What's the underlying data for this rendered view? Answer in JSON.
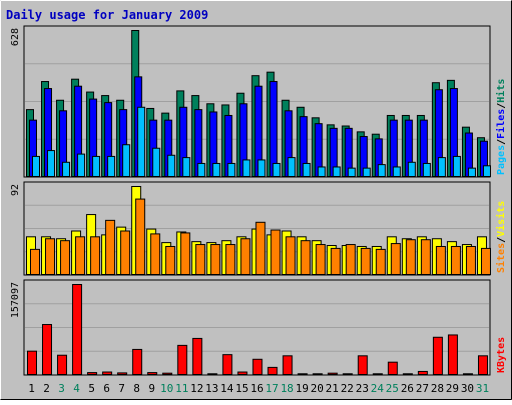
{
  "colors": {
    "background": "#c0c0c0",
    "plot_background": "#c0c0c0",
    "gridline": "#a0a0a0",
    "title": "#0000c0",
    "hits": "#00805c",
    "files": "#0000ff",
    "pages": "#00c0ff",
    "visits": "#ffff00",
    "sites": "#ff8000",
    "kbytes": "#ff0000",
    "weekend_label": "#00805c",
    "weekday_label": "#000000"
  },
  "chart_data": {
    "type": "bar",
    "title": "Daily usage for January 2009",
    "categories": [
      "1",
      "2",
      "3",
      "4",
      "5",
      "6",
      "7",
      "8",
      "9",
      "10",
      "11",
      "12",
      "13",
      "14",
      "15",
      "16",
      "17",
      "18",
      "19",
      "20",
      "21",
      "22",
      "23",
      "24",
      "25",
      "26",
      "27",
      "28",
      "29",
      "30",
      "31"
    ],
    "weekend_days": [
      "3",
      "4",
      "10",
      "11",
      "17",
      "18",
      "24",
      "25",
      "31"
    ],
    "panels": [
      {
        "name": "hits-files-pages",
        "max_label": "628",
        "ylim": [
          0,
          628
        ],
        "legend": [
          {
            "label": "Pages",
            "color_key": "pages"
          },
          {
            "label": "/",
            "color_key": "separator"
          },
          {
            "label": "Files",
            "color_key": "files"
          },
          {
            "label": "/",
            "color_key": "separator"
          },
          {
            "label": "Hits",
            "color_key": "hits"
          }
        ],
        "series": [
          {
            "name": "Hits",
            "color_key": "hits",
            "values": [
              290,
              410,
              330,
              420,
              365,
              350,
              330,
              628,
              295,
              275,
              370,
              350,
              315,
              310,
              360,
              435,
              450,
              330,
              300,
              255,
              225,
              220,
              195,
              185,
              265,
              265,
              265,
              405,
              415,
              215,
              170
            ]
          },
          {
            "name": "Files",
            "color_key": "files",
            "values": [
              245,
              380,
              285,
              390,
              335,
              320,
              290,
              430,
              245,
              245,
              300,
              290,
              280,
              265,
              315,
              390,
              410,
              285,
              260,
              230,
              210,
              210,
              175,
              165,
              245,
              245,
              245,
              375,
              380,
              190,
              155
            ]
          },
          {
            "name": "Pages",
            "color_key": "pages",
            "values": [
              90,
              115,
              65,
              100,
              90,
              90,
              140,
              300,
              125,
              95,
              85,
              60,
              60,
              60,
              75,
              75,
              60,
              85,
              60,
              45,
              45,
              40,
              40,
              55,
              45,
              65,
              60,
              85,
              90,
              40,
              50
            ]
          }
        ]
      },
      {
        "name": "visits-sites",
        "max_label": "92",
        "ylim": [
          0,
          92
        ],
        "legend": [
          {
            "label": "Sites",
            "color_key": "sites"
          },
          {
            "label": "/",
            "color_key": "separator"
          },
          {
            "label": "Visits",
            "color_key": "visits"
          }
        ],
        "series": [
          {
            "name": "Visits",
            "color_key": "visits",
            "values": [
              40,
              40,
              38,
              46,
              63,
              42,
              50,
              92,
              48,
              34,
              45,
              35,
              34,
              36,
              40,
              48,
              42,
              46,
              40,
              36,
              31,
              31,
              30,
              30,
              40,
              38,
              40,
              38,
              35,
              32,
              40
            ]
          },
          {
            "name": "Sites",
            "color_key": "sites",
            "values": [
              27,
              38,
              36,
              40,
              40,
              57,
              46,
              79,
              43,
              30,
              44,
              32,
              32,
              32,
              38,
              55,
              47,
              40,
              36,
              32,
              28,
              32,
              28,
              27,
              33,
              37,
              37,
              30,
              30,
              30,
              28
            ]
          }
        ]
      },
      {
        "name": "kbytes",
        "max_label": "157097",
        "ylim": [
          0,
          157097
        ],
        "legend": [
          {
            "label": "KBytes",
            "color_key": "kbytes"
          }
        ],
        "series": [
          {
            "name": "KBytes",
            "color_key": "kbytes",
            "values": [
              42000,
              88000,
              35000,
              157097,
              5000,
              6000,
              4500,
              45000,
              5000,
              4000,
              52000,
              64000,
              3000,
              36000,
              6000,
              28000,
              14000,
              34000,
              3000,
              3000,
              4000,
              3000,
              34000,
              3000,
              23000,
              3000,
              7000,
              66000,
              70000,
              3000,
              34000
            ]
          }
        ]
      }
    ]
  }
}
